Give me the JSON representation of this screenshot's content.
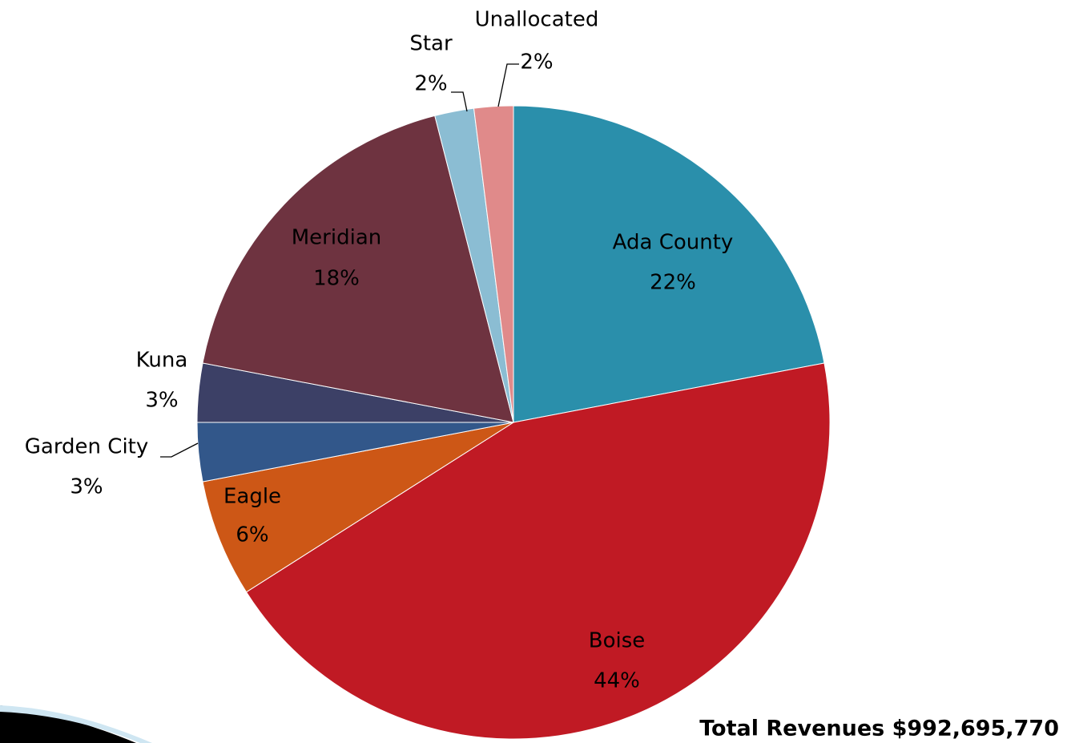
{
  "chart_data": {
    "type": "pie",
    "categories": [
      "Ada County",
      "Boise",
      "Eagle",
      "Garden City",
      "Kuna",
      "Meridian",
      "Star",
      "Unallocated"
    ],
    "values": [
      22,
      44,
      6,
      3,
      3,
      18,
      2,
      2
    ],
    "value_labels": [
      "22%",
      "44%",
      "6%",
      "3%",
      "3%",
      "18%",
      "2%",
      "2%"
    ],
    "colors": [
      "#2a8fab",
      "#c01a24",
      "#cd5716",
      "#32578a",
      "#3c4066",
      "#6e3340",
      "#8bbdd3",
      "#e08a8a"
    ],
    "annotation": "Total Revenues $992,695,770"
  }
}
